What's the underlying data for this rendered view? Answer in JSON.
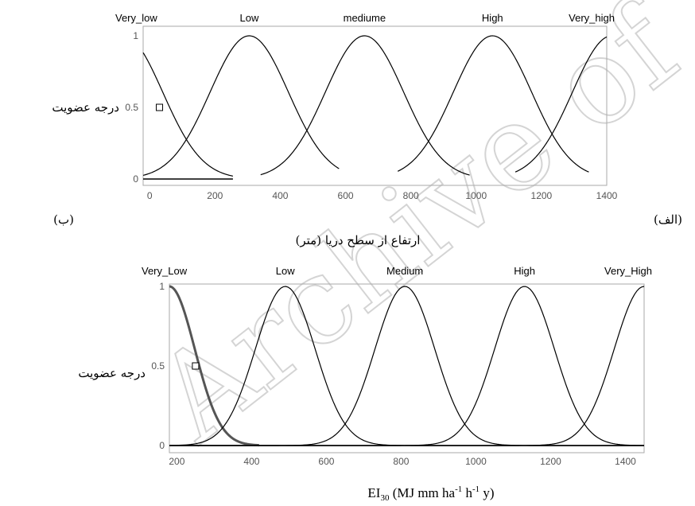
{
  "watermark": "Archive of SID",
  "chart_data": [
    {
      "type": "line",
      "title": "",
      "xlabel": "ارتفاع از سطح دريا (متر)",
      "ylabel": "درجه عضويت",
      "panel_label_left": "(ب)",
      "panel_label_right": "(الف)",
      "xlim": [
        -20,
        1400
      ],
      "ylim": [
        0,
        1
      ],
      "xticks": [
        "0",
        "200",
        "400",
        "600",
        "800",
        "1000",
        "1200",
        "1400"
      ],
      "yticks": [
        "0",
        "0.5",
        "1"
      ],
      "grid": false,
      "membership_labels": [
        "Very_low",
        "Low",
        "mediume",
        "High",
        "Very_high"
      ],
      "marker": {
        "x": 30,
        "y": 0.5
      },
      "series": [
        {
          "name": "Very_low",
          "shape": "gaussian",
          "center": -80,
          "sigma": 120,
          "x_range": [
            -20,
            255
          ]
        },
        {
          "name": "Low",
          "shape": "gaussian",
          "center": 305,
          "sigma": 120,
          "x_range": [
            -20,
            580
          ]
        },
        {
          "name": "mediume",
          "shape": "gaussian",
          "center": 658,
          "sigma": 120,
          "x_range": [
            340,
            980
          ]
        },
        {
          "name": "High",
          "shape": "gaussian",
          "center": 1050,
          "sigma": 120,
          "x_range": [
            760,
            1345
          ]
        },
        {
          "name": "Very_high",
          "shape": "gaussian",
          "center": 1415,
          "sigma": 120,
          "x_range": [
            1120,
            1400
          ]
        }
      ]
    },
    {
      "type": "line",
      "title": "",
      "xlabel": "EI30 (MJ mm ha-1 h-1 y)",
      "ylabel": "درجه عضويت",
      "xlim": [
        180,
        1450
      ],
      "ylim": [
        0,
        1
      ],
      "xticks": [
        "200",
        "400",
        "600",
        "800",
        "1000",
        "1200",
        "1400"
      ],
      "yticks": [
        "0",
        "0.5",
        "1"
      ],
      "grid": false,
      "membership_labels": [
        "Very_Low",
        "Low",
        "Medium",
        "High",
        "Very_High"
      ],
      "marker": {
        "x": 250,
        "y": 0.5
      },
      "series": [
        {
          "name": "Very_Low",
          "shape": "gaussian",
          "center": 180,
          "sigma": 68,
          "x_range": [
            180,
            420
          ],
          "bold": true
        },
        {
          "name": "Low",
          "shape": "gaussian",
          "center": 490,
          "sigma": 80,
          "x_range": [
            180,
            1450
          ]
        },
        {
          "name": "Medium",
          "shape": "gaussian",
          "center": 810,
          "sigma": 80,
          "x_range": [
            180,
            1450
          ]
        },
        {
          "name": "High",
          "shape": "gaussian",
          "center": 1130,
          "sigma": 80,
          "x_range": [
            180,
            1450
          ]
        },
        {
          "name": "Very_High",
          "shape": "gaussian",
          "center": 1450,
          "sigma": 80,
          "x_range": [
            180,
            1450
          ]
        }
      ]
    }
  ]
}
